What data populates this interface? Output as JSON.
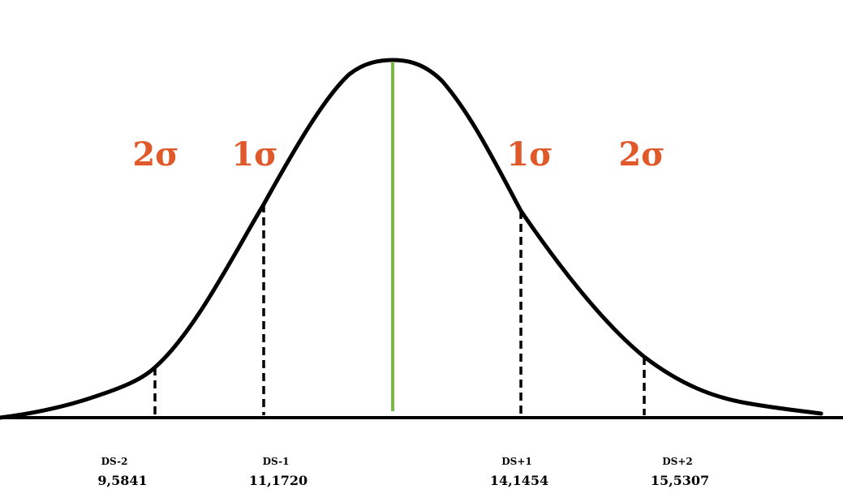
{
  "colors": {
    "curve": "#000000",
    "mean_line": "#7ab648",
    "sigma_label": "#e0592a",
    "dashed": "#000000"
  },
  "sigma_labels": {
    "left_2": "2σ",
    "left_1": "1σ",
    "right_1": "1σ",
    "right_2": "2σ"
  },
  "markers": [
    {
      "ds_label": "DS-2",
      "value": "9,5841"
    },
    {
      "ds_label": "DS-1",
      "value": "11,1720"
    },
    {
      "ds_label": "DS+1",
      "value": "14,1454"
    },
    {
      "ds_label": "DS+2",
      "value": "15,5307"
    }
  ]
}
